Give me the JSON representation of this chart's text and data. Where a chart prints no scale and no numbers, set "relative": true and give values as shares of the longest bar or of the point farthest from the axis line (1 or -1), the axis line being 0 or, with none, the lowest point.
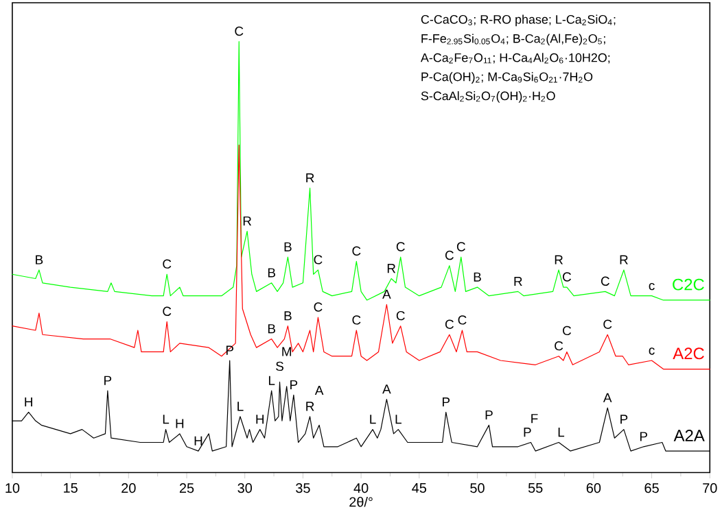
{
  "chart_data": {
    "type": "line",
    "relative": true,
    "xlabel": "2θ/°",
    "xlim": [
      10,
      70
    ],
    "xticks": [
      10,
      15,
      20,
      25,
      30,
      35,
      40,
      45,
      50,
      55,
      60,
      65,
      70
    ],
    "series": [
      {
        "name": "C2C",
        "color": "#00ff00",
        "x": [
          10,
          12.0,
          12.3,
          12.6,
          15,
          18.2,
          18.5,
          18.8,
          22,
          23.0,
          23.3,
          23.6,
          24.4,
          24.7,
          28,
          29.0,
          29.3,
          29.5,
          29.7,
          30.2,
          30.6,
          31,
          32.3,
          32.8,
          33.3,
          33.7,
          34.1,
          35.0,
          35.6,
          35.9,
          36.3,
          36.7,
          37.5,
          39.2,
          39.6,
          40.0,
          40.5,
          42.0,
          42.6,
          43.0,
          43.4,
          43.8,
          45,
          46.9,
          47.6,
          48.1,
          48.6,
          49.0,
          50,
          51,
          53.5,
          54,
          56.5,
          57,
          57.4,
          57.7,
          58.3,
          61,
          61.8,
          62.6,
          63.2,
          65,
          66,
          70
        ],
        "values": [
          0.46,
          0.45,
          0.47,
          0.44,
          0.43,
          0.42,
          0.44,
          0.42,
          0.41,
          0.41,
          0.46,
          0.41,
          0.43,
          0.41,
          0.41,
          0.43,
          0.48,
          1.0,
          0.5,
          0.56,
          0.46,
          0.42,
          0.44,
          0.42,
          0.44,
          0.5,
          0.43,
          0.44,
          0.66,
          0.46,
          0.47,
          0.42,
          0.41,
          0.42,
          0.49,
          0.42,
          0.4,
          0.42,
          0.45,
          0.44,
          0.5,
          0.43,
          0.41,
          0.43,
          0.48,
          0.42,
          0.5,
          0.42,
          0.43,
          0.41,
          0.42,
          0.41,
          0.42,
          0.47,
          0.43,
          0.43,
          0.41,
          0.42,
          0.41,
          0.47,
          0.41,
          0.41,
          0.4,
          0.4
        ]
      },
      {
        "name": "A2C",
        "color": "#ff0000",
        "x": [
          10,
          12.0,
          12.3,
          12.6,
          16.1,
          18.4,
          20.5,
          20.8,
          21.1,
          23.0,
          23.3,
          23.6,
          24.4,
          26.9,
          28,
          29.2,
          29.5,
          29.8,
          30.5,
          31,
          32.3,
          32.8,
          33.4,
          33.7,
          34.1,
          34.6,
          35.0,
          35.6,
          35.9,
          36.3,
          36.8,
          37.5,
          39.2,
          39.6,
          40.0,
          40.5,
          41.5,
          42.2,
          42.7,
          43.4,
          43.9,
          45,
          46.8,
          47.6,
          48.2,
          48.7,
          49.1,
          50,
          52,
          55,
          57,
          57.4,
          57.7,
          58.2,
          60.5,
          61.2,
          61.9,
          62.5,
          63,
          65,
          66,
          70
        ],
        "values": [
          0.34,
          0.33,
          0.37,
          0.32,
          0.31,
          0.31,
          0.29,
          0.33,
          0.28,
          0.28,
          0.35,
          0.28,
          0.3,
          0.29,
          0.27,
          0.3,
          0.76,
          0.38,
          0.32,
          0.29,
          0.31,
          0.29,
          0.31,
          0.34,
          0.28,
          0.3,
          0.28,
          0.33,
          0.28,
          0.36,
          0.28,
          0.27,
          0.27,
          0.33,
          0.27,
          0.26,
          0.28,
          0.39,
          0.3,
          0.34,
          0.28,
          0.26,
          0.28,
          0.32,
          0.28,
          0.33,
          0.28,
          0.28,
          0.26,
          0.25,
          0.27,
          0.26,
          0.28,
          0.25,
          0.28,
          0.32,
          0.27,
          0.27,
          0.25,
          0.26,
          0.24,
          0.24
        ]
      },
      {
        "name": "A2A",
        "color": "#000000",
        "x": [
          10,
          10.8,
          11.4,
          12.0,
          12.5,
          15,
          16.0,
          17,
          18.0,
          18.2,
          18.5,
          21,
          23.0,
          23.2,
          23.5,
          24.4,
          25,
          26.0,
          26.9,
          27.2,
          28.4,
          28.7,
          28.9,
          29.6,
          30.2,
          30.4,
          30.7,
          31.3,
          31.7,
          32.3,
          32.6,
          32.9,
          33.0,
          33.2,
          33.6,
          33.9,
          34.2,
          34.6,
          35.2,
          35.6,
          35.9,
          36.4,
          36.8,
          38,
          39.6,
          40.0,
          41,
          41.4,
          41.7,
          42.2,
          42.8,
          43.2,
          44,
          45,
          47,
          47.3,
          47.8,
          50,
          51,
          51.3,
          53.5,
          54.6,
          55,
          57,
          58,
          60.5,
          61.2,
          61.8,
          62.6,
          63.2,
          64.3,
          65.9,
          66.2,
          70
        ],
        "values": [
          0.12,
          0.12,
          0.14,
          0.12,
          0.11,
          0.09,
          0.1,
          0.08,
          0.09,
          0.19,
          0.08,
          0.07,
          0.07,
          0.1,
          0.07,
          0.09,
          0.06,
          0.05,
          0.09,
          0.05,
          0.06,
          0.26,
          0.06,
          0.13,
          0.08,
          0.1,
          0.07,
          0.1,
          0.08,
          0.19,
          0.12,
          0.13,
          0.21,
          0.12,
          0.2,
          0.12,
          0.18,
          0.07,
          0.09,
          0.13,
          0.08,
          0.11,
          0.06,
          0.06,
          0.08,
          0.06,
          0.1,
          0.08,
          0.1,
          0.17,
          0.09,
          0.1,
          0.07,
          0.07,
          0.07,
          0.14,
          0.07,
          0.06,
          0.11,
          0.06,
          0.06,
          0.07,
          0.05,
          0.07,
          0.05,
          0.07,
          0.15,
          0.08,
          0.1,
          0.05,
          0.06,
          0.07,
          0.05,
          0.05
        ]
      }
    ],
    "annotations": [
      "C-CaCO$_{3}$; R-RO phase; L-Ca$_{2}$SiO$_{4}$;",
      "F-Fe$_{2.95}$Si$_{0.05}$O$_{4}$; B-Ca$_{2}$(Al,Fe)$_{2}$O$_{5}$;",
      "A-Ca$_{2}$Fe$_{7}$O$_{11}$; H-Ca$_{4}$Al$_{2}$O$_{6}$·10H2O;",
      "P-Ca(OH)$_{2}$; M-Ca$_{9}$Si$_{6}$O$_{21}$·7H$_{2}$O",
      "S-CaAl$_{2}$Si$_{2}$O$_{7}$(OH)$_{2}$·H$_{2}$O",
      {
        "text": "B",
        "x": 12.3,
        "y": 0.47
      },
      {
        "text": "C",
        "x": 23.3,
        "y": 0.46
      },
      {
        "text": "C",
        "x": 29.5,
        "y": 1.0
      },
      {
        "text": "R",
        "x": 30.2,
        "y": 0.56
      },
      {
        "text": "B",
        "x": 32.3,
        "y": 0.44
      },
      {
        "text": "B",
        "x": 33.7,
        "y": 0.5
      },
      {
        "text": "R",
        "x": 35.6,
        "y": 0.66
      },
      {
        "text": "C",
        "x": 36.3,
        "y": 0.47
      },
      {
        "text": "C",
        "x": 39.6,
        "y": 0.49
      },
      {
        "text": "R",
        "x": 42.6,
        "y": 0.45
      },
      {
        "text": "C",
        "x": 43.4,
        "y": 0.5
      },
      {
        "text": "C",
        "x": 47.6,
        "y": 0.48
      },
      {
        "text": "C",
        "x": 48.6,
        "y": 0.5
      },
      {
        "text": "B",
        "x": 50,
        "y": 0.43
      },
      {
        "text": "R",
        "x": 53.5,
        "y": 0.42
      },
      {
        "text": "R",
        "x": 57,
        "y": 0.47
      },
      {
        "text": "C",
        "x": 57.7,
        "y": 0.43
      },
      {
        "text": "C",
        "x": 61,
        "y": 0.42
      },
      {
        "text": "R",
        "x": 62.6,
        "y": 0.47
      },
      {
        "text": "c",
        "x": 65,
        "y": 0.41
      },
      {
        "text": "C",
        "x": 23.3,
        "y": 0.35
      },
      {
        "text": "B",
        "x": 32.3,
        "y": 0.31
      },
      {
        "text": "B",
        "x": 33.7,
        "y": 0.34
      },
      {
        "text": "C",
        "x": 36.3,
        "y": 0.36
      },
      {
        "text": "C",
        "x": 39.6,
        "y": 0.33
      },
      {
        "text": "A",
        "x": 42.2,
        "y": 0.39
      },
      {
        "text": "C",
        "x": 43.4,
        "y": 0.34
      },
      {
        "text": "C",
        "x": 47.6,
        "y": 0.32
      },
      {
        "text": "C",
        "x": 48.7,
        "y": 0.33
      },
      {
        "text": "C",
        "x": 57,
        "y": 0.27
      },
      {
        "text": "C",
        "x": 57.7,
        "y": 0.28
      },
      {
        "text": "C",
        "x": 61.2,
        "y": 0.32
      },
      {
        "text": "c",
        "x": 65,
        "y": 0.26
      },
      {
        "text": "H",
        "x": 11.4,
        "y": 0.14
      },
      {
        "text": "P",
        "x": 18.2,
        "y": 0.19
      },
      {
        "text": "L",
        "x": 23.2,
        "y": 0.1
      },
      {
        "text": "H",
        "x": 24.4,
        "y": 0.09
      },
      {
        "text": "H",
        "x": 26.0,
        "y": 0.05
      },
      {
        "text": "P",
        "x": 28.7,
        "y": 0.26
      },
      {
        "text": "L",
        "x": 29.6,
        "y": 0.13
      },
      {
        "text": "H",
        "x": 31.3,
        "y": 0.1
      },
      {
        "text": "L",
        "x": 32.3,
        "y": 0.19
      },
      {
        "text": "S",
        "x": 33.0,
        "y": 0.21
      },
      {
        "text": "M",
        "x": 33.6,
        "y": 0.2
      },
      {
        "text": "P",
        "x": 34.2,
        "y": 0.18
      },
      {
        "text": "R",
        "x": 35.6,
        "y": 0.13
      },
      {
        "text": "A",
        "x": 36.4,
        "y": 0.11
      },
      {
        "text": "L",
        "x": 41,
        "y": 0.1
      },
      {
        "text": "A",
        "x": 42.2,
        "y": 0.17
      },
      {
        "text": "L",
        "x": 43.2,
        "y": 0.1
      },
      {
        "text": "P",
        "x": 47.3,
        "y": 0.14
      },
      {
        "text": "P",
        "x": 51,
        "y": 0.11
      },
      {
        "text": "P",
        "x": 54.3,
        "y": 0.07
      },
      {
        "text": "F",
        "x": 54.9,
        "y": 0.07
      },
      {
        "text": "L",
        "x": 57.2,
        "y": 0.07
      },
      {
        "text": "A",
        "x": 61.2,
        "y": 0.15
      },
      {
        "text": "P",
        "x": 62.6,
        "y": 0.1
      },
      {
        "text": "P",
        "x": 64.3,
        "y": 0.06
      }
    ]
  }
}
